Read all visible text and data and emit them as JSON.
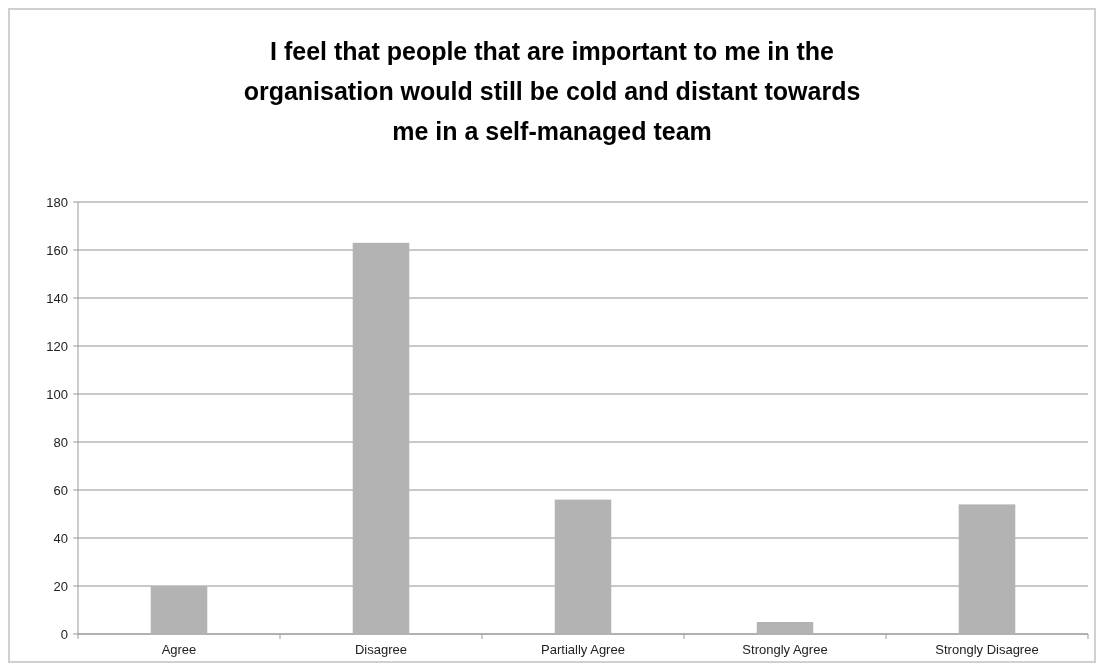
{
  "chart_data": {
    "type": "bar",
    "title": "I feel that people that are important to me in the organisation would still be cold and distant towards me in a self-managed team",
    "categories": [
      "Agree",
      "Disagree",
      "Partially Agree",
      "Strongly Agree",
      "Strongly Disagree"
    ],
    "values": [
      20,
      163,
      56,
      5,
      54
    ],
    "color": "#b3b3b3",
    "ylim": [
      0,
      180
    ],
    "yticks": [
      0,
      20,
      40,
      60,
      80,
      100,
      120,
      140,
      160,
      180
    ],
    "grid": "y"
  }
}
